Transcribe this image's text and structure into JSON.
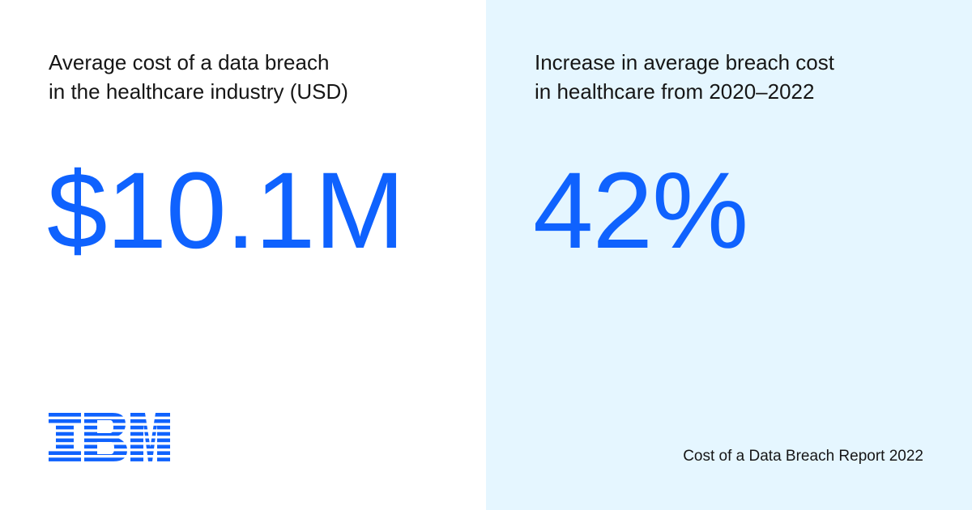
{
  "left_stat": {
    "label_line1": "Average cost of a data breach",
    "label_line2": "in the healthcare industry (USD)",
    "value": "$10.1M"
  },
  "right_stat": {
    "label_line1": "Increase in average breach cost",
    "label_line2": "in healthcare from 2020–2022",
    "value": "42%"
  },
  "logo": {
    "text": "IBM",
    "color": "#0f62fe"
  },
  "footer": {
    "source": "Cost of a Data Breach Report 2022"
  },
  "colors": {
    "accent": "#0f62fe",
    "text": "#161616",
    "left_bg": "#ffffff",
    "right_bg": "#e5f6ff"
  }
}
